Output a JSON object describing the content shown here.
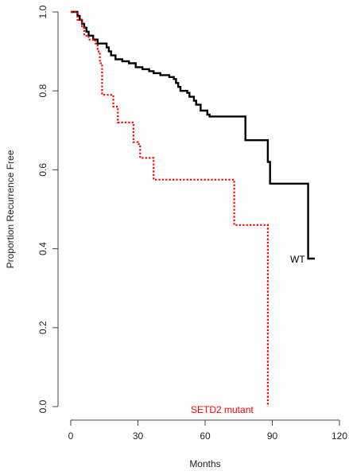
{
  "chart_data": {
    "type": "line",
    "subtype": "kaplan-meier step",
    "xlabel": "Months",
    "ylabel": "Proportion Recurrence Free",
    "xlim": [
      0,
      120
    ],
    "ylim": [
      0,
      1
    ],
    "x_ticks": [
      0,
      30,
      60,
      90,
      120
    ],
    "y_ticks": [
      "0.0",
      "0.2",
      "0.4",
      "0.6",
      "0.8",
      "1.0"
    ],
    "grid": false,
    "legend": "none",
    "series": [
      {
        "label": "WT",
        "color": "#000000",
        "style": "solid",
        "points": [
          [
            0,
            1.0
          ],
          [
            3,
            0.99
          ],
          [
            4,
            0.98
          ],
          [
            5,
            0.97
          ],
          [
            6,
            0.96
          ],
          [
            7,
            0.95
          ],
          [
            8,
            0.94
          ],
          [
            10,
            0.93
          ],
          [
            12,
            0.92
          ],
          [
            15,
            0.92
          ],
          [
            16,
            0.91
          ],
          [
            17,
            0.9
          ],
          [
            18,
            0.89
          ],
          [
            20,
            0.88
          ],
          [
            23,
            0.875
          ],
          [
            26,
            0.87
          ],
          [
            29,
            0.86
          ],
          [
            32,
            0.855
          ],
          [
            35,
            0.85
          ],
          [
            37,
            0.845
          ],
          [
            40,
            0.84
          ],
          [
            44,
            0.835
          ],
          [
            46,
            0.83
          ],
          [
            47,
            0.82
          ],
          [
            48,
            0.81
          ],
          [
            49,
            0.8
          ],
          [
            52,
            0.795
          ],
          [
            53,
            0.785
          ],
          [
            55,
            0.775
          ],
          [
            56,
            0.765
          ],
          [
            58,
            0.75
          ],
          [
            61,
            0.74
          ],
          [
            62,
            0.735
          ],
          [
            77,
            0.735
          ],
          [
            78,
            0.675
          ],
          [
            87,
            0.675
          ],
          [
            88,
            0.62
          ],
          [
            89,
            0.565
          ],
          [
            105,
            0.565
          ],
          [
            106,
            0.375
          ],
          [
            109,
            0.375
          ]
        ]
      },
      {
        "label": "SETD2 mutant",
        "color": "#ff0000",
        "style": "dotted",
        "points": [
          [
            0,
            1.0
          ],
          [
            3,
            0.98
          ],
          [
            5,
            0.96
          ],
          [
            6,
            0.94
          ],
          [
            8,
            0.93
          ],
          [
            11,
            0.92
          ],
          [
            12,
            0.9
          ],
          [
            13,
            0.87
          ],
          [
            14,
            0.79
          ],
          [
            18,
            0.79
          ],
          [
            19,
            0.76
          ],
          [
            21,
            0.72
          ],
          [
            26,
            0.72
          ],
          [
            28,
            0.67
          ],
          [
            30,
            0.665
          ],
          [
            31,
            0.63
          ],
          [
            36,
            0.63
          ],
          [
            37,
            0.575
          ],
          [
            72,
            0.575
          ],
          [
            73,
            0.46
          ],
          [
            88,
            0.46
          ],
          [
            88,
            0.0
          ]
        ]
      }
    ],
    "annotations": [
      {
        "text": "WT",
        "color": "#000000",
        "anchor": "right-end of black curve"
      },
      {
        "text": "SETD2 mutant",
        "color": "#ff0000",
        "anchor": "bottom of red drop"
      }
    ]
  }
}
